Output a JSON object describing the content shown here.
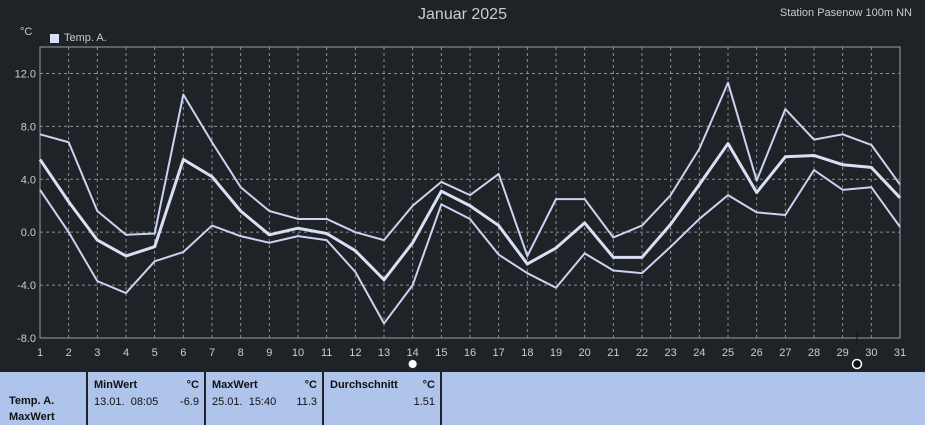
{
  "chart_data": {
    "type": "line",
    "title": "Januar 2025",
    "station": "Station Pasenow 100m NN",
    "unit": "°C",
    "legend": [
      "Temp. A."
    ],
    "legend_position": "top-left",
    "grid": true,
    "x": [
      1,
      2,
      3,
      4,
      5,
      6,
      7,
      8,
      9,
      10,
      11,
      12,
      13,
      14,
      15,
      16,
      17,
      18,
      19,
      20,
      21,
      22,
      23,
      24,
      25,
      26,
      27,
      28,
      29,
      30,
      31
    ],
    "xlim": [
      1,
      31
    ],
    "ylim": [
      -8,
      14
    ],
    "yticks": [
      12.0,
      8.0,
      4.0,
      0.0,
      -4.0,
      -8.0
    ],
    "ytick_labels": [
      "12.0",
      "8.0",
      "4.0",
      "0.0",
      "-4.0",
      "-8.0"
    ],
    "series": [
      {
        "name": "Temp. A.",
        "role": "max",
        "color": "#c8d4f2",
        "values": [
          7.4,
          6.8,
          1.6,
          -0.2,
          -0.1,
          10.4,
          6.8,
          3.4,
          1.6,
          1.0,
          1.0,
          0.0,
          -0.6,
          2.0,
          3.8,
          2.8,
          4.4,
          -1.8,
          2.5,
          2.5,
          -0.4,
          0.5,
          2.8,
          6.3,
          11.3,
          3.9,
          9.3,
          7.0,
          7.4,
          6.6,
          3.6
        ]
      },
      {
        "role": "mean",
        "color": "#d8e0f6",
        "values": [
          5.5,
          2.3,
          -0.6,
          -1.8,
          -1.1,
          5.5,
          4.2,
          1.6,
          -0.2,
          0.3,
          -0.1,
          -1.4,
          -3.6,
          -0.8,
          3.1,
          2.0,
          0.5,
          -2.4,
          -1.2,
          0.7,
          -1.9,
          -1.9,
          0.6,
          3.6,
          6.7,
          3.0,
          5.7,
          5.8,
          5.1,
          4.9,
          2.6
        ]
      },
      {
        "role": "min",
        "color": "#c8d4f2",
        "values": [
          3.2,
          0.0,
          -3.7,
          -4.6,
          -2.2,
          -1.5,
          0.5,
          -0.3,
          -0.8,
          -0.3,
          -0.6,
          -3.0,
          -6.9,
          -4.0,
          2.1,
          1.0,
          -1.7,
          -3.1,
          -4.2,
          -1.6,
          -2.9,
          -3.1,
          -1.1,
          1.0,
          2.8,
          1.5,
          1.3,
          4.7,
          3.2,
          3.4,
          0.4
        ]
      }
    ],
    "markers": [
      {
        "x": 14,
        "symbol": "full-moon"
      },
      {
        "x": 29.5,
        "symbol": "new-moon"
      }
    ]
  },
  "table": {
    "row_label_1": "Temp. A.",
    "row_label_2": "MaxWert",
    "min_header": "MinWert",
    "min_unit": "°C",
    "min_time": "13.01.  08:05",
    "min_value": "-6.9",
    "max_header": "MaxWert",
    "max_unit": "°C",
    "max_time": "25.01.  15:40",
    "max_value": "11.3",
    "avg_header": "Durchschnitt",
    "avg_unit": "°C",
    "avg_value": "1.51"
  }
}
